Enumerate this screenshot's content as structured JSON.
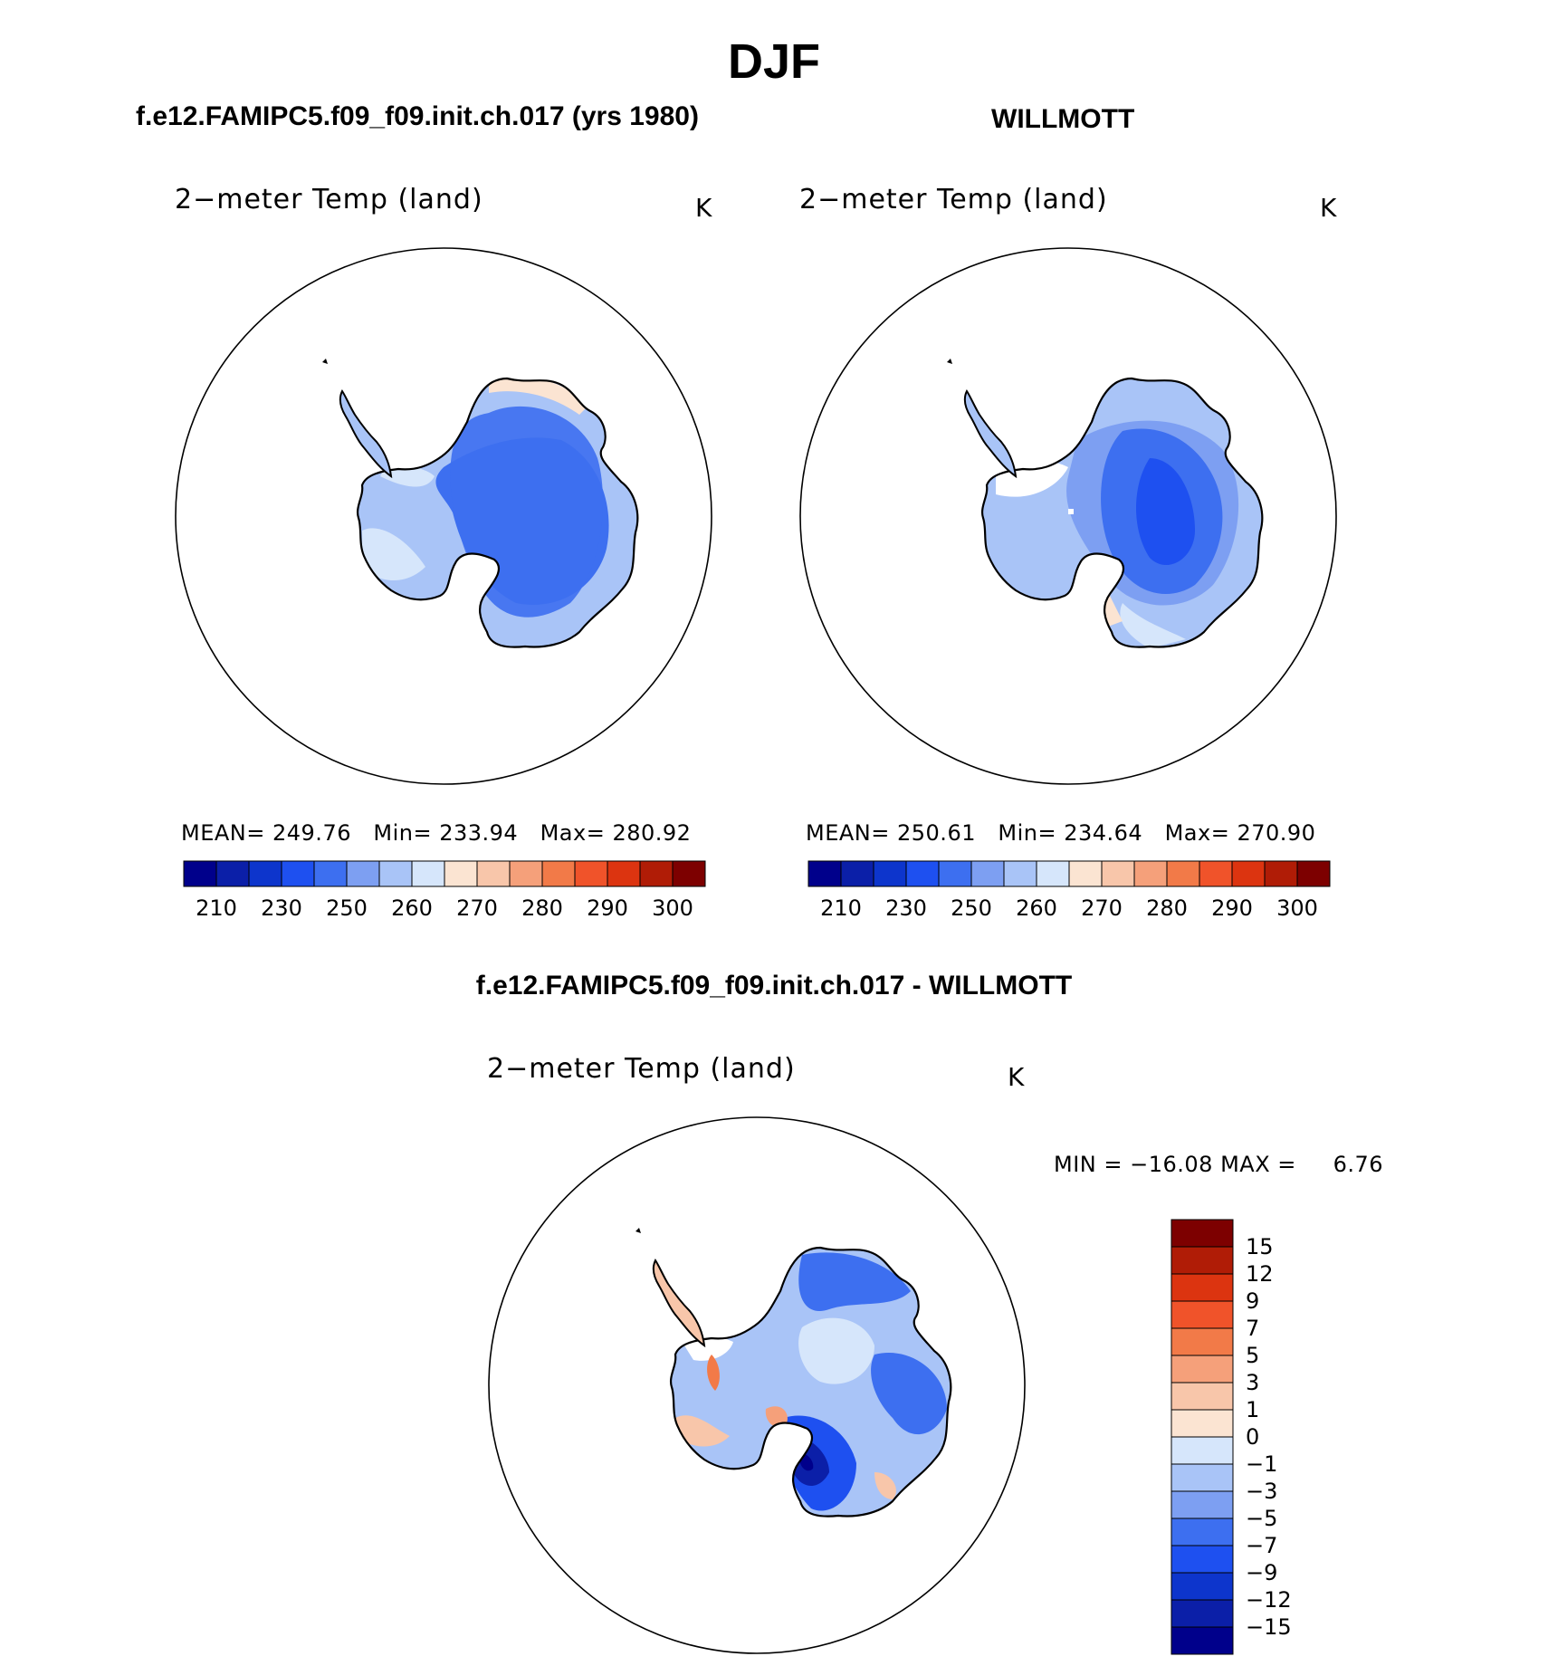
{
  "page_title": "DJF",
  "panels": [
    {
      "id": "model",
      "header": "f.e12.FAMIPC5.f09_f09.init.ch.017 (yrs 1980)",
      "variable": "2−meter Temp (land)",
      "units": "K",
      "stats": {
        "mean_label": "MEAN=",
        "mean": "249.76",
        "min_label": "Min=",
        "min": "233.94",
        "max_label": "Max=",
        "max": "280.92"
      }
    },
    {
      "id": "obs",
      "header": "WILLMOTT",
      "variable": "2−meter Temp (land)",
      "units": "K",
      "stats": {
        "mean_label": "MEAN=",
        "mean": "250.61",
        "min_label": "Min=",
        "min": "234.64",
        "max_label": "Max=",
        "max": "270.90"
      }
    },
    {
      "id": "diff",
      "header": "f.e12.FAMIPC5.f09_f09.init.ch.017 - WILLMOTT",
      "variable": "2−meter Temp (land)",
      "units": "K",
      "stats": {
        "min_label": "MIN =",
        "min": "−16.08",
        "max_label": "MAX =",
        "max": "6.76"
      }
    }
  ],
  "chart_data": [
    {
      "type": "heatmap",
      "title": "2−meter Temp (land)",
      "projection": "south-polar-stereographic",
      "region": "Antarctica",
      "units": "K",
      "mean": 249.76,
      "min": 233.94,
      "max": 280.92,
      "colorbar": {
        "orientation": "horizontal",
        "tick_labels": [
          "210",
          "230",
          "250",
          "260",
          "270",
          "280",
          "290",
          "300"
        ],
        "colors": [
          "#00008b",
          "#0b1fa8",
          "#0d35cc",
          "#1e50f0",
          "#3d6ff0",
          "#7d9ff2",
          "#a9c4f7",
          "#d6e6fb",
          "#fbe4d2",
          "#f8c6aa",
          "#f5a07a",
          "#f27a48",
          "#f0532a",
          "#dc3410",
          "#b01c06",
          "#7d0000"
        ]
      }
    },
    {
      "type": "heatmap",
      "title": "2−meter Temp (land)",
      "projection": "south-polar-stereographic",
      "region": "Antarctica",
      "units": "K",
      "mean": 250.61,
      "min": 234.64,
      "max": 270.9,
      "colorbar": {
        "orientation": "horizontal",
        "tick_labels": [
          "210",
          "230",
          "250",
          "260",
          "270",
          "280",
          "290",
          "300"
        ],
        "colors": [
          "#00008b",
          "#0b1fa8",
          "#0d35cc",
          "#1e50f0",
          "#3d6ff0",
          "#7d9ff2",
          "#a9c4f7",
          "#d6e6fb",
          "#fbe4d2",
          "#f8c6aa",
          "#f5a07a",
          "#f27a48",
          "#f0532a",
          "#dc3410",
          "#b01c06",
          "#7d0000"
        ]
      }
    },
    {
      "type": "heatmap",
      "title": "2−meter Temp (land)",
      "projection": "south-polar-stereographic",
      "region": "Antarctica",
      "units": "K",
      "min": -16.08,
      "max": 6.76,
      "colorbar": {
        "orientation": "vertical",
        "tick_labels": [
          "15",
          "12",
          "9",
          "7",
          "5",
          "3",
          "1",
          "0",
          "−1",
          "−3",
          "−5",
          "−7",
          "−9",
          "−12",
          "−15"
        ],
        "colors": [
          "#7d0000",
          "#b01c06",
          "#dc3410",
          "#f0532a",
          "#f27a48",
          "#f5a07a",
          "#f8c6aa",
          "#fbe4d2",
          "#d6e6fb",
          "#a9c4f7",
          "#7d9ff2",
          "#3d6ff0",
          "#1e50f0",
          "#0d35cc",
          "#0b1fa8",
          "#00008b"
        ]
      }
    }
  ]
}
